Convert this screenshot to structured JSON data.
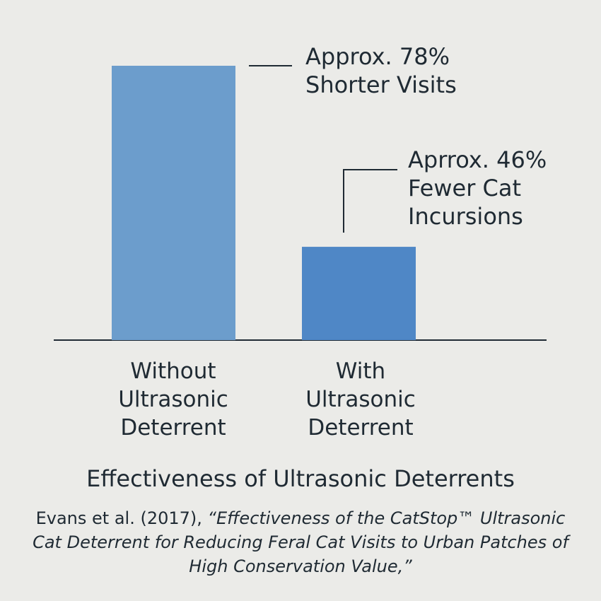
{
  "chart_data": {
    "type": "bar",
    "title": "Effectiveness of Ultrasonic Deterrents",
    "categories": [
      "Without\nUltrasonic\nDeterrent",
      "With\nUltrasonic\nDeterrent"
    ],
    "values": [
      100,
      34
    ],
    "ylim": [
      0,
      100
    ],
    "grid": false,
    "colors": [
      "#6c9dcc",
      "#4f87c6"
    ],
    "annotations": [
      "Approx. 78%\nShorter Visits",
      "Aprrox. 46%\nFewer Cat\nIncursions"
    ]
  },
  "citation": {
    "authors": "Evans et al. (2017), ",
    "title": "“Effectiveness of the CatStop™ Ultrasonic Cat Deterrent for Reducing Feral Cat Visits to Urban Patches of High Conservation Value,”"
  }
}
